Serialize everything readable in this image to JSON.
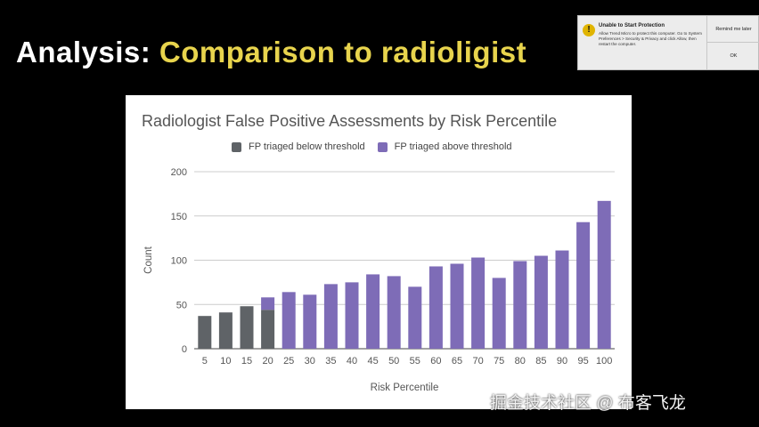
{
  "slide": {
    "title_lead": "Analysis:",
    "title_rest": "Comparison to radioligist"
  },
  "notification": {
    "title": "Unable to Start Protection",
    "body": "Allow Trend Micro to protect this computer. Go to System Preferences > Security & Privacy and click Allow, then restart the computer.",
    "buttons": [
      "Remind me later",
      "OK"
    ],
    "icon": "warning-icon",
    "icon_glyph": "!"
  },
  "watermark": "掘金技术社区 @ 布客飞龙",
  "colors": {
    "below": "#5f6367",
    "above": "#7e6cb7",
    "grid": "#cccccc",
    "axis": "#555555"
  },
  "chart_data": {
    "type": "bar",
    "title": "Radiologist False Positive Assessments by Risk Percentile",
    "xlabel": "Risk Percentile",
    "ylabel": "Count",
    "ylim": [
      0,
      200
    ],
    "yticks": [
      0,
      50,
      100,
      150,
      200
    ],
    "grid": true,
    "legend_position": "top",
    "categories": [
      "5",
      "10",
      "15",
      "20",
      "25",
      "30",
      "35",
      "40",
      "45",
      "50",
      "55",
      "60",
      "65",
      "70",
      "75",
      "80",
      "85",
      "90",
      "95",
      "100"
    ],
    "stacked": true,
    "series": [
      {
        "name": "FP triaged below threshold",
        "color": "#5f6367",
        "values": [
          37,
          41,
          48,
          44,
          0,
          0,
          0,
          0,
          0,
          0,
          0,
          0,
          0,
          0,
          0,
          0,
          0,
          0,
          0,
          0
        ]
      },
      {
        "name": "FP triaged above threshold",
        "color": "#7e6cb7",
        "values": [
          0,
          0,
          0,
          14,
          64,
          61,
          73,
          75,
          84,
          82,
          70,
          93,
          96,
          103,
          80,
          99,
          105,
          111,
          143,
          167
        ]
      }
    ]
  }
}
